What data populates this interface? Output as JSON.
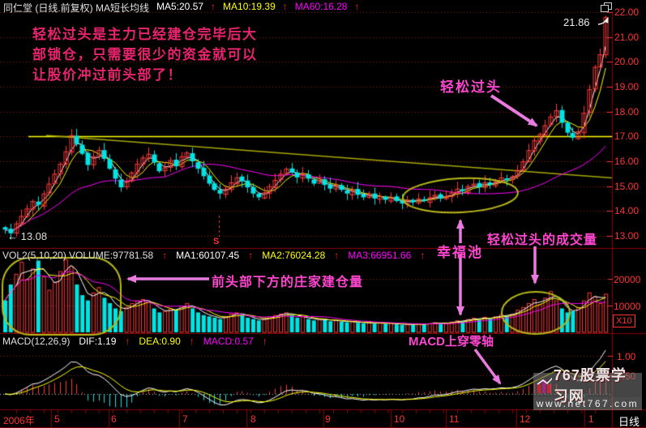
{
  "header": {
    "title": "同仁堂 (日线.前复权) MA短长均线",
    "indicators": [
      {
        "label": "MA5:20.57",
        "color": "#ffffff",
        "arrow": true
      },
      {
        "label": "MA10:19.39",
        "color": "#ffff00",
        "arrow": true
      },
      {
        "label": "MA60:16.28",
        "color": "#ff00ff",
        "arrow": true
      }
    ],
    "arrow_char": "↑"
  },
  "annotations": {
    "paragraph_lines": [
      "轻松过头是主力已经建仓完毕后大",
      "部锁仓，只需要很少的资金就可以",
      "让股价冲过前头部了！"
    ],
    "easy_pass": "轻松过头",
    "happy_pool": "幸福池",
    "easy_pass_volume": "轻松过头的成交量",
    "builder_volume": "前头部下方的庄家建仓量",
    "macd_cross": "MACD上穿零轴",
    "high_marker": "21.86",
    "low_marker": "← 13.08",
    "event_marker": "S"
  },
  "volume_header": {
    "items": [
      {
        "label": "VOL2(5,10,20) VOLUME:97781.58",
        "color": "#e0e0e0",
        "arrow": true
      },
      {
        "label": "MA1:60107.45",
        "color": "#ffffff",
        "arrow": true
      },
      {
        "label": "MA2:76024.28",
        "color": "#ffff00",
        "arrow": true
      },
      {
        "label": "MA3:66951.66",
        "color": "#ff00ff",
        "arrow": true
      }
    ]
  },
  "macd_header": {
    "items": [
      {
        "label": "MACD(12,26,9)",
        "color": "#e0e0e0",
        "arrow": false
      },
      {
        "label": "DIF:1.19",
        "color": "#ffffff",
        "arrow": true
      },
      {
        "label": "DEA:0.90",
        "color": "#ffff00",
        "arrow": true
      },
      {
        "label": "MACD:0.57",
        "color": "#ff00ff",
        "arrow": true
      }
    ]
  },
  "axes": {
    "price_labels": [
      "22.00",
      "21.00",
      "20.00",
      "19.00",
      "18.00",
      "17.00",
      "16.00",
      "15.00",
      "14.00",
      "13.00"
    ],
    "volume_labels": [
      "20000",
      "10000"
    ],
    "volume_multiplier": "X10",
    "macd_labels": [
      "1.00",
      "0.50"
    ],
    "time": {
      "year": "2006年",
      "months": [
        "5",
        "6",
        "7",
        "8",
        "9",
        "10",
        "11",
        "12",
        "1"
      ],
      "period": "日线"
    }
  },
  "watermark": {
    "site": "767股票学习网",
    "url": "www.net767.com"
  },
  "colors": {
    "up": "#ff3a3a",
    "down": "#00e4e4",
    "ma_fast": "#ffffff",
    "ma_mid": "#ffff00",
    "ma_slow": "#ff00ff",
    "axis_text": "#ff3232",
    "grid": "#9a1f1f",
    "separator": "#8b0000",
    "resistance": "#ffff00",
    "trendline": "#a8a800",
    "highlight": "#b8b818",
    "annotation_pink": "#ff46d0",
    "annotation_red": "#e8246e",
    "arrow": "#e87ae0",
    "zero_line": "#c8c8c8"
  },
  "chart_data": {
    "type": "candlestick",
    "title": "同仁堂 日线 前复权 2006",
    "ylim": [
      13,
      22
    ],
    "price_gridlines": [
      22,
      21,
      20,
      19,
      18,
      17,
      16,
      15,
      14,
      13
    ],
    "volume_gridlines": [
      20000,
      10000
    ],
    "macd_gridlines": [
      1.0,
      0.5
    ],
    "first_low": 13.08,
    "last_high": 21.86,
    "resistance_level": 17.0,
    "month_starts": [
      0,
      9,
      19,
      32,
      44,
      58,
      71,
      81,
      93,
      105
    ],
    "close": [
      13.25,
      13.1,
      13.5,
      13.8,
      14.1,
      14.4,
      14.25,
      14.7,
      15.1,
      15.5,
      15.9,
      16.4,
      17.05,
      16.7,
      16.3,
      15.85,
      16.2,
      16.45,
      16.1,
      15.7,
      15.3,
      14.95,
      15.2,
      15.55,
      15.9,
      16.15,
      16.3,
      15.95,
      15.6,
      15.75,
      16.05,
      15.8,
      16.2,
      16.35,
      16.0,
      15.7,
      15.4,
      15.1,
      14.85,
      14.7,
      14.9,
      15.15,
      15.35,
      15.2,
      14.95,
      14.7,
      14.55,
      14.75,
      15.0,
      15.25,
      15.5,
      15.7,
      15.55,
      15.35,
      15.5,
      15.3,
      15.1,
      15.25,
      15.05,
      14.9,
      15.05,
      14.85,
      14.7,
      14.85,
      14.65,
      14.55,
      14.7,
      14.5,
      14.6,
      14.45,
      14.55,
      14.4,
      14.3,
      14.45,
      14.35,
      14.5,
      14.4,
      14.55,
      14.65,
      14.5,
      14.6,
      14.75,
      14.9,
      14.8,
      15.0,
      15.1,
      14.95,
      15.15,
      15.05,
      15.2,
      15.35,
      15.25,
      15.4,
      15.65,
      16.0,
      16.45,
      16.85,
      17.1,
      17.45,
      17.8,
      18.05,
      17.55,
      17.15,
      16.95,
      17.2,
      17.95,
      18.9,
      19.8,
      20.3,
      21.8
    ],
    "volume": [
      12000,
      18000,
      22000,
      26500,
      20000,
      24000,
      27000,
      21000,
      16000,
      19000,
      23000,
      27500,
      25000,
      18000,
      14000,
      12000,
      15000,
      17000,
      13000,
      11000,
      9000,
      8000,
      9500,
      11000,
      12000,
      12500,
      11500,
      9000,
      7500,
      8000,
      9000,
      8500,
      10000,
      11000,
      9000,
      7500,
      6500,
      6000,
      5500,
      5000,
      6000,
      7000,
      7500,
      6500,
      5500,
      5000,
      4500,
      5000,
      6000,
      6500,
      7000,
      7500,
      6500,
      5500,
      6000,
      5000,
      4500,
      5000,
      4800,
      4200,
      4600,
      4000,
      3800,
      4200,
      3600,
      3400,
      3800,
      3300,
      3600,
      3200,
      3500,
      3000,
      2800,
      3200,
      2900,
      3300,
      3000,
      3400,
      3800,
      3200,
      3500,
      4000,
      4500,
      4200,
      5000,
      5500,
      4800,
      5800,
      5200,
      6000,
      6800,
      6200,
      7000,
      8500,
      9500,
      11000,
      12500,
      10500,
      13000,
      15500,
      12000,
      9000,
      7500,
      8000,
      9500,
      12000,
      15000,
      13500,
      11000,
      14500
    ]
  }
}
